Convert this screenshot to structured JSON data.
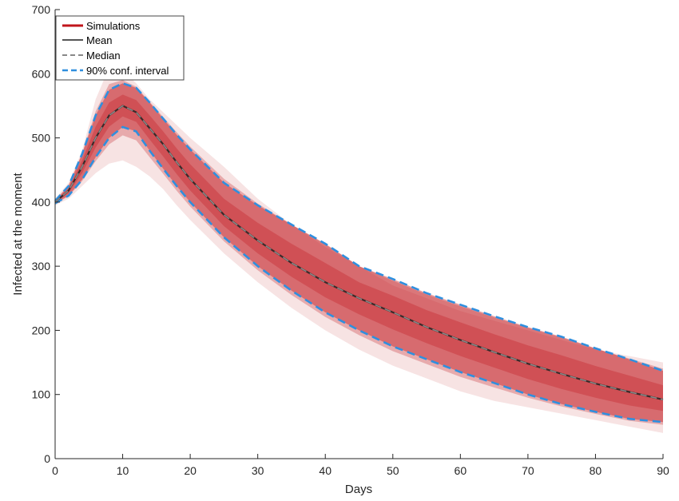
{
  "chart_data": {
    "type": "line",
    "title": "",
    "xlabel": "Days",
    "ylabel": "Infected at the moment",
    "xlim": [
      0,
      90
    ],
    "ylim": [
      0,
      700
    ],
    "x_ticks": [
      0,
      10,
      20,
      30,
      40,
      50,
      60,
      70,
      80,
      90
    ],
    "y_ticks": [
      0,
      100,
      200,
      300,
      400,
      500,
      600,
      700
    ],
    "grid": false,
    "legend_position": "top-left",
    "x": [
      0,
      2,
      4,
      6,
      8,
      10,
      12,
      14,
      16,
      18,
      20,
      25,
      30,
      35,
      40,
      45,
      50,
      55,
      60,
      65,
      70,
      75,
      80,
      85,
      90
    ],
    "series": [
      {
        "name": "Simulations",
        "style": "band",
        "color": "#c0151b",
        "values_upper_extreme": [
          405,
          430,
          480,
          560,
          610,
          605,
          585,
          560,
          540,
          520,
          500,
          455,
          405,
          365,
          330,
          300,
          270,
          250,
          230,
          215,
          200,
          185,
          170,
          160,
          150
        ],
        "values_lower_extreme": [
          395,
          405,
          425,
          445,
          460,
          465,
          455,
          440,
          420,
          395,
          372,
          320,
          275,
          235,
          200,
          170,
          145,
          125,
          105,
          90,
          80,
          70,
          60,
          50,
          40
        ]
      },
      {
        "name": "Mean",
        "style": "solid",
        "color": "#555555",
        "values": [
          400,
          418,
          455,
          500,
          535,
          550,
          540,
          515,
          490,
          462,
          436,
          380,
          340,
          305,
          275,
          250,
          228,
          205,
          185,
          166,
          148,
          132,
          117,
          104,
          92
        ]
      },
      {
        "name": "Median",
        "style": "dashed",
        "color": "#888888",
        "values": [
          400,
          418,
          455,
          500,
          535,
          550,
          540,
          515,
          490,
          462,
          436,
          380,
          340,
          305,
          275,
          250,
          228,
          205,
          185,
          166,
          148,
          132,
          117,
          104,
          92
        ]
      },
      {
        "name": "90% conf. interval",
        "style": "dashed",
        "color": "#2f8fde",
        "values_upper": [
          402,
          425,
          475,
          535,
          575,
          585,
          578,
          555,
          530,
          505,
          482,
          430,
          395,
          365,
          335,
          300,
          280,
          258,
          240,
          222,
          205,
          190,
          172,
          155,
          137
        ],
        "values_lower": [
          398,
          410,
          435,
          470,
          500,
          517,
          510,
          480,
          452,
          425,
          400,
          345,
          300,
          262,
          228,
          200,
          175,
          155,
          135,
          118,
          100,
          85,
          73,
          62,
          57
        ]
      }
    ]
  }
}
